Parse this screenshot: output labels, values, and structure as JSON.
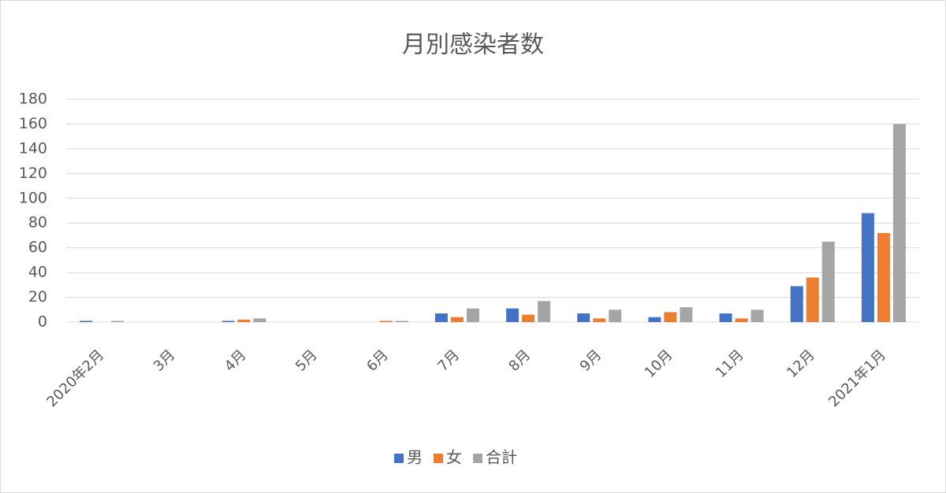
{
  "chart_data": {
    "type": "bar",
    "title": "月別感染者数",
    "categories": [
      "2020年2月",
      "3月",
      "4月",
      "5月",
      "6月",
      "7月",
      "8月",
      "9月",
      "10月",
      "11月",
      "12月",
      "2021年1月"
    ],
    "series": [
      {
        "name": "男",
        "color": "#4472c4",
        "values": [
          1,
          0,
          1,
          0,
          0,
          7,
          11,
          7,
          4,
          7,
          29,
          88
        ]
      },
      {
        "name": "女",
        "color": "#ed7d31",
        "values": [
          0,
          0,
          2,
          0,
          1,
          4,
          6,
          3,
          8,
          3,
          36,
          72
        ]
      },
      {
        "name": "合計",
        "color": "#a5a5a5",
        "values": [
          1,
          0,
          3,
          0,
          1,
          11,
          17,
          10,
          12,
          10,
          65,
          160
        ]
      }
    ],
    "ylim": [
      0,
      180
    ],
    "yticks": [
      0,
      20,
      40,
      60,
      80,
      100,
      120,
      140,
      160,
      180
    ],
    "grid": true,
    "legend": "bottom"
  }
}
